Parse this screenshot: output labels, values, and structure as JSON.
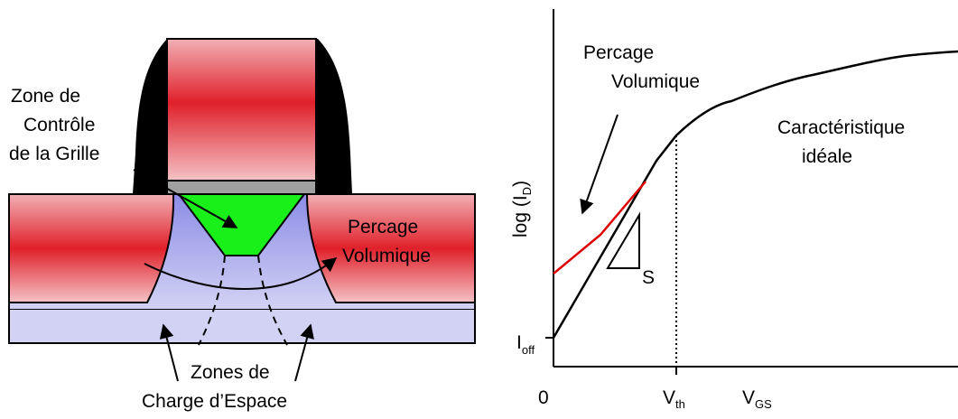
{
  "mosfet": {
    "label_control_l1": "Zone de",
    "label_control_l2": "Contrôle",
    "label_control_l3": "de la Grille",
    "label_punch_l1": "Percage",
    "label_punch_l2": "Volumique",
    "label_zce_l1": "Zones de",
    "label_zce_l2": "Charge d’Espace"
  },
  "graph": {
    "ylabel_main": "log (I",
    "ylabel_sub": "D",
    "ylabel_close": ")",
    "ioff_main": "I",
    "ioff_sub": "off",
    "x_zero": "0",
    "vth_main": "V",
    "vth_sub": "th",
    "vgs_main": "V",
    "vgs_sub": "GS",
    "punch_l1": "Percage",
    "punch_l2": "Volumique",
    "ideal_l1": "Caractéristique",
    "ideal_l2": "idéale",
    "slope_label": "S",
    "punch_color": "#e00000"
  },
  "colors": {
    "gate_red": "#e0202a",
    "gate_pink": "#f2b0b5",
    "depletion": "#b4b4ee",
    "substrate": "#d2d2f5",
    "control_zone": "#19f019",
    "oxide": "#a0a0a0"
  }
}
